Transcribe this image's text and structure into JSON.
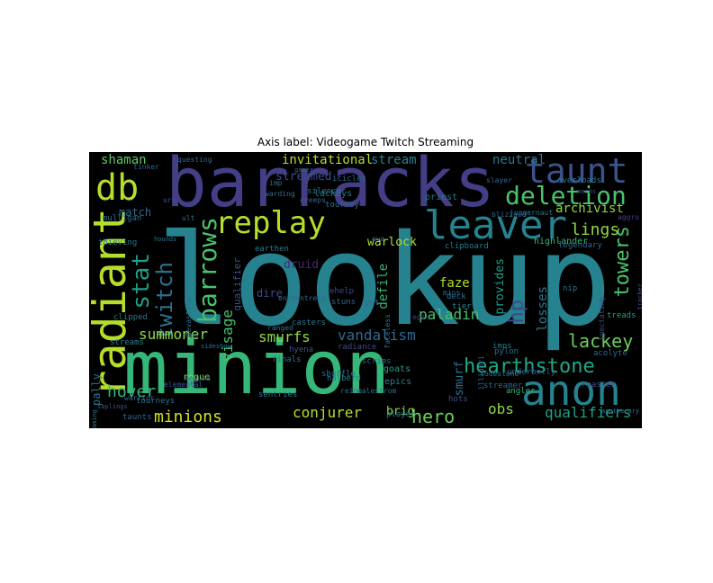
{
  "title": "Axis label: Videogame Twitch Streaming",
  "words": [
    {
      "text": "lookup",
      "color": "#26828e"
    },
    {
      "text": "minion",
      "color": "#35b779"
    },
    {
      "text": "barracks",
      "color": "#433e85"
    },
    {
      "text": "anon",
      "color": "#26828e"
    },
    {
      "text": "leaver",
      "color": "#26828e"
    },
    {
      "text": "radiant",
      "color": "#b5de2b"
    },
    {
      "text": "db",
      "color": "#b5de2b"
    },
    {
      "text": "taunt",
      "color": "#3b528b"
    },
    {
      "text": "deletion",
      "color": "#4ac16d"
    },
    {
      "text": "replay",
      "color": "#b5de2b"
    },
    {
      "text": "hearthstone",
      "color": "#21a685"
    },
    {
      "text": "barrows",
      "color": "#4ac16d"
    },
    {
      "text": "stat",
      "color": "#1f9e89"
    },
    {
      "text": "twitch",
      "color": "#2c728e"
    },
    {
      "text": "towers",
      "color": "#4ac16d"
    },
    {
      "text": "lackey",
      "color": "#6ccd5a"
    },
    {
      "text": "minions",
      "color": "#d0e11c"
    },
    {
      "text": "hero",
      "color": "#6ccd5a"
    },
    {
      "text": "vandalism",
      "color": "#31688e"
    },
    {
      "text": "smurfs",
      "color": "#90d743"
    },
    {
      "text": "summoner",
      "color": "#90d743"
    },
    {
      "text": "hover",
      "color": "#35b779"
    },
    {
      "text": "lings",
      "color": "#90d743"
    },
    {
      "text": "qualifiers",
      "color": "#1fa187"
    },
    {
      "text": "conjurer",
      "color": "#b5de2b"
    },
    {
      "text": "obs",
      "color": "#90d743"
    },
    {
      "text": "hp",
      "color": "#3e4989"
    },
    {
      "text": "visage",
      "color": "#4ac16d"
    },
    {
      "text": "paladin",
      "color": "#4ac16d"
    },
    {
      "text": "shaman",
      "color": "#5ec962"
    },
    {
      "text": "invitational",
      "color": "#b5de2b"
    },
    {
      "text": "stream",
      "color": "#26828e"
    },
    {
      "text": "neutral",
      "color": "#2a788e"
    },
    {
      "text": "streamed",
      "color": "#3e4989"
    },
    {
      "text": "archivist",
      "color": "#90d743"
    },
    {
      "text": "warlock",
      "color": "#b5de2b"
    },
    {
      "text": "druid",
      "color": "#482878"
    },
    {
      "text": "defile",
      "color": "#35b779"
    },
    {
      "text": "losses",
      "color": "#2a788e"
    },
    {
      "text": "provides",
      "color": "#1f9e89"
    },
    {
      "text": "smurf",
      "color": "#2c728e"
    },
    {
      "text": "faze",
      "color": "#b5de2b"
    },
    {
      "text": "brig",
      "color": "#90d743"
    },
    {
      "text": "match",
      "color": "#31688e"
    },
    {
      "text": "dire",
      "color": "#3e4989"
    },
    {
      "text": "pally",
      "color": "#2c728e"
    },
    {
      "text": "rogue",
      "color": "#90d743"
    },
    {
      "text": "qualifier",
      "color": "#3b528b"
    },
    {
      "text": "goats",
      "color": "#1f9e89"
    },
    {
      "text": "epics",
      "color": "#26828e"
    },
    {
      "text": "player",
      "color": "#2a788e"
    },
    {
      "text": "lackeys",
      "color": "#2a788e"
    },
    {
      "text": "priest",
      "color": "#2a788e"
    },
    {
      "text": "silencer",
      "color": "#2c728e"
    },
    {
      "text": "icicles",
      "color": "#31688e"
    },
    {
      "text": "tourney",
      "color": "#31688e"
    },
    {
      "text": "highlander",
      "color": "#35b779"
    },
    {
      "text": "deck",
      "color": "#2c728e"
    },
    {
      "text": "pvt",
      "color": "#31688e"
    },
    {
      "text": "tier",
      "color": "#26828e"
    },
    {
      "text": "clipboard",
      "color": "#2a788e"
    },
    {
      "text": "legendary",
      "color": "#31688e"
    },
    {
      "text": "nip",
      "color": "#2c728e"
    },
    {
      "text": "treads",
      "color": "#1f9e89"
    },
    {
      "text": "acolyte",
      "color": "#31688e"
    },
    {
      "text": "roaster",
      "color": "#3b528b"
    },
    {
      "text": "angler",
      "color": "#35b779"
    },
    {
      "text": "streamer",
      "color": "#31688e"
    },
    {
      "text": "pylon",
      "color": "#2c728e"
    },
    {
      "text": "imps",
      "color": "#2a788e"
    },
    {
      "text": "hots",
      "color": "#3b528b"
    },
    {
      "text": "underbelly",
      "color": "#31688e"
    },
    {
      "text": "radiance",
      "color": "#3e4989"
    },
    {
      "text": "hyena",
      "color": "#3b528b"
    },
    {
      "text": "casters",
      "color": "#2a788e"
    },
    {
      "text": "stuns",
      "color": "#31688e"
    },
    {
      "text": "ehelp",
      "color": "#3e4989"
    },
    {
      "text": "shuffle",
      "color": "#2c728e"
    },
    {
      "text": "scrims",
      "color": "#31688e"
    },
    {
      "text": "finals",
      "color": "#2a788e"
    },
    {
      "text": "halberd",
      "color": "#2a788e"
    },
    {
      "text": "sentries",
      "color": "#2a788e"
    },
    {
      "text": "taunts",
      "color": "#31688e"
    },
    {
      "text": "tourneys",
      "color": "#2c728e"
    },
    {
      "text": "streams",
      "color": "#26828e"
    },
    {
      "text": "clipped",
      "color": "#2a788e"
    },
    {
      "text": "warrior",
      "color": "#31688e"
    },
    {
      "text": "mulligan",
      "color": "#2c728e"
    },
    {
      "text": "thieving",
      "color": "#2c728e"
    },
    {
      "text": "earthen",
      "color": "#2a788e"
    },
    {
      "text": "devastator",
      "color": "#2c728e"
    },
    {
      "text": "tinker",
      "color": "#31688e"
    },
    {
      "text": "ult",
      "color": "#2c728e"
    },
    {
      "text": "urn",
      "color": "#3b528b"
    },
    {
      "text": "warding",
      "color": "#2c728e"
    },
    {
      "text": "questing",
      "color": "#31688e"
    },
    {
      "text": "ranged",
      "color": "#2a788e"
    },
    {
      "text": "medusa",
      "color": "#2c728e"
    },
    {
      "text": "elemental",
      "color": "#3b528b"
    },
    {
      "text": "epic",
      "color": "#433e85"
    },
    {
      "text": "mins",
      "color": "#31688e"
    },
    {
      "text": "faceless",
      "color": "#2c728e"
    },
    {
      "text": "lodestone",
      "color": "#2a788e"
    },
    {
      "text": "aggro",
      "color": "#433e85"
    },
    {
      "text": "juggernaut",
      "color": "#2c728e"
    },
    {
      "text": "slayer",
      "color": "#31688e"
    },
    {
      "text": "creeps",
      "color": "#31688e"
    },
    {
      "text": "imp",
      "color": "#2c728e"
    },
    {
      "text": "enchantress",
      "color": "#31688e"
    },
    {
      "text": "blizzard",
      "color": "#31688e"
    },
    {
      "text": "overloads",
      "color": "#2a788e"
    },
    {
      "text": "eve",
      "color": "#31688e"
    },
    {
      "text": "hounds",
      "color": "#2c728e"
    },
    {
      "text": "spectating",
      "color": "#3b528b"
    },
    {
      "text": "illidari",
      "color": "#31688e"
    },
    {
      "text": "reinc",
      "color": "#2c728e"
    },
    {
      "text": "malestrom",
      "color": "#2c728e"
    },
    {
      "text": "saplings",
      "color": "#3b528b"
    },
    {
      "text": "apothecary",
      "color": "#2c728e"
    },
    {
      "text": "tracker",
      "color": "#3b528b"
    },
    {
      "text": "gamer",
      "color": "#31688e"
    },
    {
      "text": "mage",
      "color": "#2c728e"
    },
    {
      "text": "mechs",
      "color": "#3b528b"
    },
    {
      "text": "sideshow",
      "color": "#2c728e"
    },
    {
      "text": "streaming",
      "color": "#2c728e"
    }
  ]
}
